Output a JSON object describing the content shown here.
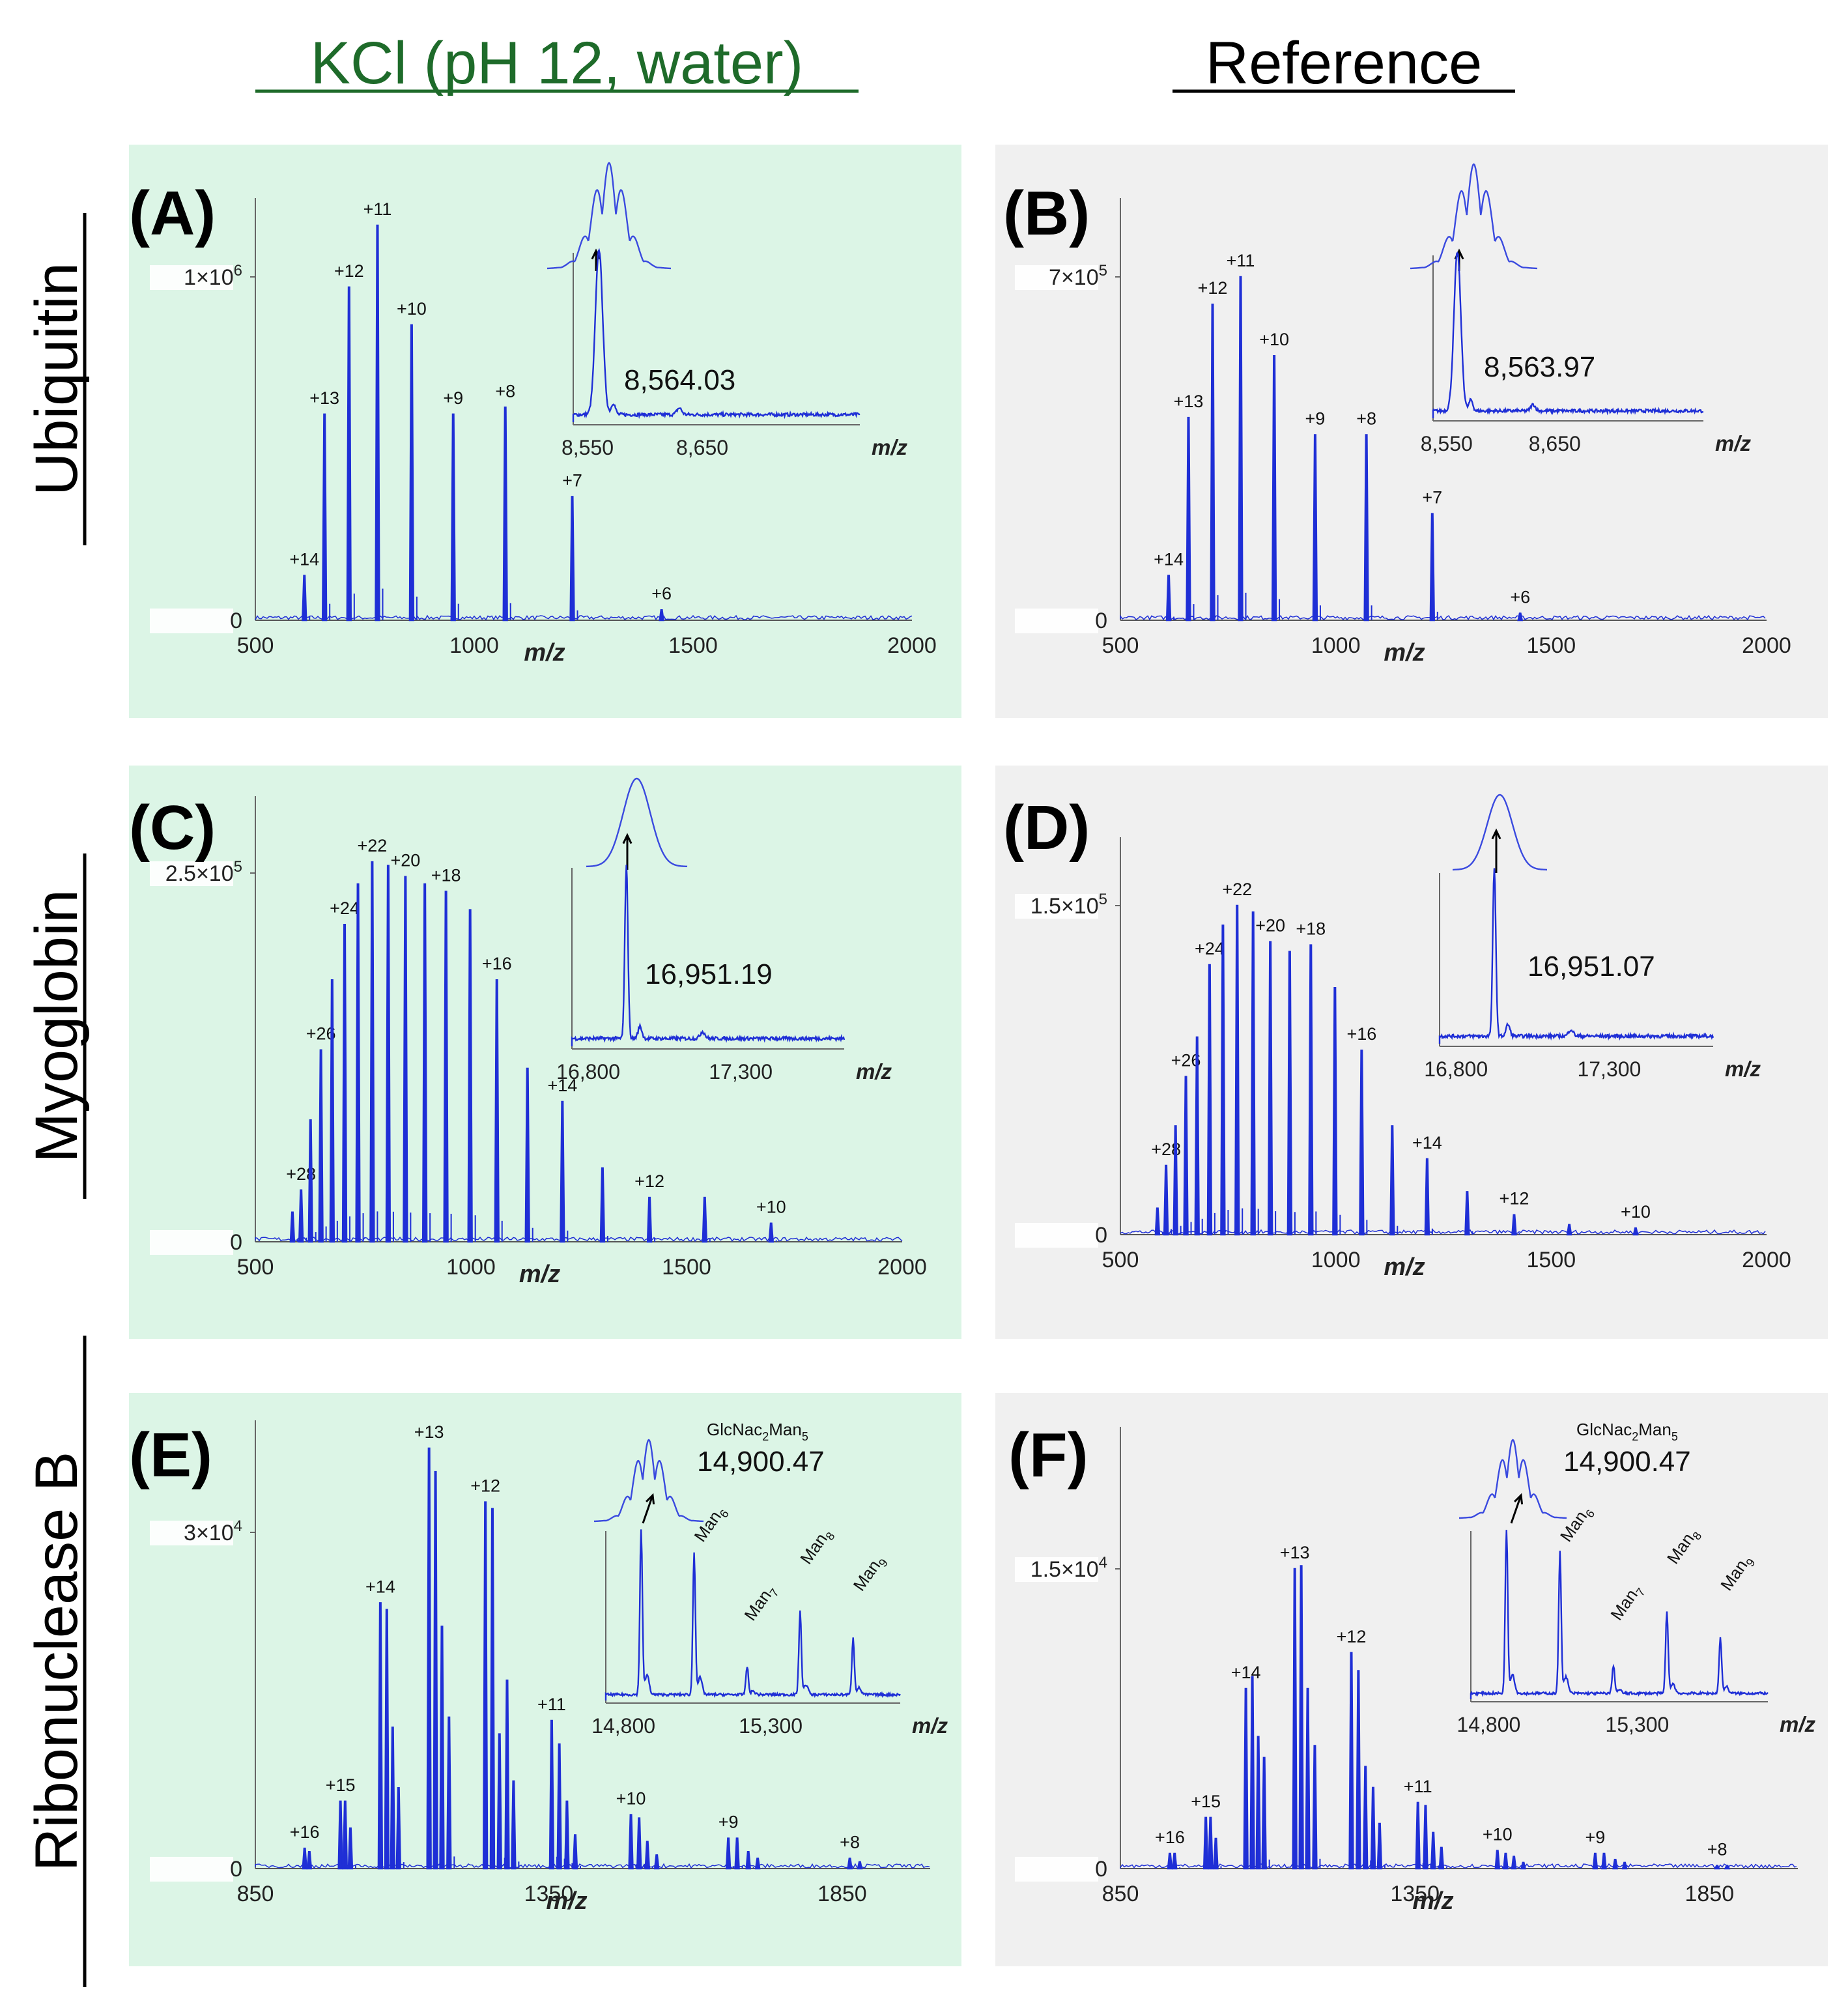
{
  "column_titles": {
    "left": "KCl (pH 12, water)",
    "right": "Reference"
  },
  "row_titles": [
    "Ubiquitin",
    "Myoglobin",
    "Ribonuclease B"
  ],
  "colors": {
    "green_bg": "#dcf5e6",
    "gray_bg": "#f0f0f0",
    "spectrum": "#1f2fd6",
    "left_title": "#1e6b2a",
    "inset_line": "#3a4adf"
  },
  "xlabel": "m/z",
  "chart_data": [
    {
      "id": "A",
      "panel_label": "(A)",
      "type": "line",
      "title": "Ubiquitin KCl (pH 12, water)",
      "xlim": [
        500,
        2000
      ],
      "xticks": [
        "500",
        "1000",
        "1500",
        "2000"
      ],
      "ymax_value": 1000000,
      "ylabels": [
        "1×10",
        "0"
      ],
      "yexp": "6",
      "peaks": [
        {
          "x": 612,
          "y": 0.13,
          "label": "+14"
        },
        {
          "x": 658,
          "y": 0.6,
          "label": "+13"
        },
        {
          "x": 714,
          "y": 0.97,
          "label": "+12"
        },
        {
          "x": 779,
          "y": 1.15,
          "label": "+11"
        },
        {
          "x": 857,
          "y": 0.86,
          "label": "+10"
        },
        {
          "x": 952,
          "y": 0.6,
          "label": "+9"
        },
        {
          "x": 1071,
          "y": 0.62,
          "label": "+8"
        },
        {
          "x": 1224,
          "y": 0.36,
          "label": "+7"
        },
        {
          "x": 1428,
          "y": 0.03,
          "label": "+6"
        }
      ],
      "inset": {
        "mass": "8,564.03",
        "xticks": [
          "8,550",
          "8,650"
        ],
        "xlabel": "m/z",
        "envelope": "isotope"
      }
    },
    {
      "id": "B",
      "panel_label": "(B)",
      "type": "line",
      "title": "Ubiquitin Reference",
      "xlim": [
        500,
        2000
      ],
      "xticks": [
        "500",
        "1000",
        "1500",
        "2000"
      ],
      "ymax_value": 700000,
      "ylabels": [
        "7×10",
        "0"
      ],
      "yexp": "5",
      "peaks": [
        {
          "x": 612,
          "y": 0.13,
          "label": "+14"
        },
        {
          "x": 658,
          "y": 0.59,
          "label": "+13"
        },
        {
          "x": 714,
          "y": 0.92,
          "label": "+12"
        },
        {
          "x": 779,
          "y": 1.0,
          "label": "+11"
        },
        {
          "x": 857,
          "y": 0.77,
          "label": "+10"
        },
        {
          "x": 952,
          "y": 0.54,
          "label": "+9"
        },
        {
          "x": 1071,
          "y": 0.54,
          "label": "+8"
        },
        {
          "x": 1224,
          "y": 0.31,
          "label": "+7"
        },
        {
          "x": 1428,
          "y": 0.02,
          "label": "+6"
        }
      ],
      "inset": {
        "mass": "8,563.97",
        "xticks": [
          "8,550",
          "8,650"
        ],
        "xlabel": "m/z",
        "envelope": "isotope"
      }
    },
    {
      "id": "C",
      "panel_label": "(C)",
      "type": "line",
      "title": "Myoglobin KCl (pH 12, water)",
      "xlim": [
        500,
        2000
      ],
      "xticks": [
        "500",
        "1000",
        "1500",
        "2000"
      ],
      "ymax_value": 250000,
      "ylabels": [
        "2.5×10",
        "0"
      ],
      "yexp": "5",
      "peaks": [
        {
          "x": 586,
          "y": 0.08,
          "label": ""
        },
        {
          "x": 606,
          "y": 0.14,
          "label": "+28"
        },
        {
          "x": 628,
          "y": 0.33,
          "label": ""
        },
        {
          "x": 652,
          "y": 0.52,
          "label": "+26"
        },
        {
          "x": 678,
          "y": 0.71,
          "label": ""
        },
        {
          "x": 707,
          "y": 0.86,
          "label": "+24"
        },
        {
          "x": 738,
          "y": 0.97,
          "label": ""
        },
        {
          "x": 771,
          "y": 1.03,
          "label": "+22"
        },
        {
          "x": 808,
          "y": 1.02,
          "label": ""
        },
        {
          "x": 848,
          "y": 0.99,
          "label": "+20"
        },
        {
          "x": 893,
          "y": 0.97,
          "label": ""
        },
        {
          "x": 942,
          "y": 0.95,
          "label": "+18"
        },
        {
          "x": 998,
          "y": 0.9,
          "label": ""
        },
        {
          "x": 1060,
          "y": 0.71,
          "label": "+16"
        },
        {
          "x": 1131,
          "y": 0.47,
          "label": ""
        },
        {
          "x": 1212,
          "y": 0.38,
          "label": "+14"
        },
        {
          "x": 1305,
          "y": 0.2,
          "label": ""
        },
        {
          "x": 1414,
          "y": 0.12,
          "label": "+12"
        },
        {
          "x": 1542,
          "y": 0.12,
          "label": ""
        },
        {
          "x": 1696,
          "y": 0.05,
          "label": "+10"
        }
      ],
      "inset": {
        "mass": "16,951.19",
        "xticks": [
          "16,800",
          "17,300"
        ],
        "xlabel": "m/z",
        "envelope": "smooth"
      }
    },
    {
      "id": "D",
      "panel_label": "(D)",
      "type": "line",
      "title": "Myoglobin Reference",
      "xlim": [
        500,
        2000
      ],
      "xticks": [
        "500",
        "1000",
        "1500",
        "2000"
      ],
      "ymax_value": 150000,
      "ylabels": [
        "1.5×10",
        "0"
      ],
      "yexp": "5",
      "peaks": [
        {
          "x": 586,
          "y": 0.08,
          "label": ""
        },
        {
          "x": 606,
          "y": 0.21,
          "label": "+28"
        },
        {
          "x": 628,
          "y": 0.33,
          "label": ""
        },
        {
          "x": 652,
          "y": 0.48,
          "label": "+26"
        },
        {
          "x": 678,
          "y": 0.6,
          "label": ""
        },
        {
          "x": 707,
          "y": 0.82,
          "label": "+24"
        },
        {
          "x": 738,
          "y": 0.94,
          "label": ""
        },
        {
          "x": 771,
          "y": 1.0,
          "label": "+22"
        },
        {
          "x": 808,
          "y": 0.98,
          "label": ""
        },
        {
          "x": 848,
          "y": 0.89,
          "label": "+20"
        },
        {
          "x": 893,
          "y": 0.86,
          "label": ""
        },
        {
          "x": 942,
          "y": 0.88,
          "label": "+18"
        },
        {
          "x": 998,
          "y": 0.75,
          "label": ""
        },
        {
          "x": 1060,
          "y": 0.56,
          "label": "+16"
        },
        {
          "x": 1131,
          "y": 0.33,
          "label": ""
        },
        {
          "x": 1212,
          "y": 0.23,
          "label": "+14"
        },
        {
          "x": 1305,
          "y": 0.13,
          "label": ""
        },
        {
          "x": 1414,
          "y": 0.06,
          "label": "+12"
        },
        {
          "x": 1542,
          "y": 0.03,
          "label": ""
        },
        {
          "x": 1696,
          "y": 0.02,
          "label": "+10"
        }
      ],
      "inset": {
        "mass": "16,951.07",
        "xticks": [
          "16,800",
          "17,300"
        ],
        "xlabel": "m/z",
        "envelope": "smooth"
      }
    },
    {
      "id": "E",
      "panel_label": "(E)",
      "type": "line",
      "title": "Ribonuclease B KCl (pH 12, water)",
      "xlim": [
        850,
        2000
      ],
      "xticks": [
        "850",
        "1350",
        "1850"
      ],
      "ymax_value": 30000,
      "ylabels": [
        "3×10",
        "0"
      ],
      "yexp": "4",
      "peaks": [
        {
          "x": 934,
          "y": 0.06,
          "label": "+16"
        },
        {
          "x": 942,
          "y": 0.05,
          "label": ""
        },
        {
          "x": 995,
          "y": 0.2,
          "label": "+15"
        },
        {
          "x": 1003,
          "y": 0.2,
          "label": ""
        },
        {
          "x": 1012,
          "y": 0.12,
          "label": ""
        },
        {
          "x": 1063,
          "y": 0.79,
          "label": "+14"
        },
        {
          "x": 1074,
          "y": 0.77,
          "label": ""
        },
        {
          "x": 1084,
          "y": 0.42,
          "label": ""
        },
        {
          "x": 1094,
          "y": 0.24,
          "label": ""
        },
        {
          "x": 1146,
          "y": 1.25,
          "label": "+13"
        },
        {
          "x": 1157,
          "y": 1.18,
          "label": ""
        },
        {
          "x": 1168,
          "y": 0.72,
          "label": ""
        },
        {
          "x": 1180,
          "y": 0.45,
          "label": ""
        },
        {
          "x": 1242,
          "y": 1.09,
          "label": "+12"
        },
        {
          "x": 1254,
          "y": 1.07,
          "label": ""
        },
        {
          "x": 1266,
          "y": 0.4,
          "label": ""
        },
        {
          "x": 1279,
          "y": 0.56,
          "label": ""
        },
        {
          "x": 1290,
          "y": 0.26,
          "label": ""
        },
        {
          "x": 1355,
          "y": 0.44,
          "label": "+11"
        },
        {
          "x": 1368,
          "y": 0.37,
          "label": ""
        },
        {
          "x": 1381,
          "y": 0.2,
          "label": ""
        },
        {
          "x": 1395,
          "y": 0.1,
          "label": ""
        },
        {
          "x": 1490,
          "y": 0.16,
          "label": "+10"
        },
        {
          "x": 1504,
          "y": 0.15,
          "label": ""
        },
        {
          "x": 1518,
          "y": 0.08,
          "label": ""
        },
        {
          "x": 1534,
          "y": 0.04,
          "label": ""
        },
        {
          "x": 1656,
          "y": 0.09,
          "label": "+9"
        },
        {
          "x": 1671,
          "y": 0.09,
          "label": ""
        },
        {
          "x": 1690,
          "y": 0.05,
          "label": ""
        },
        {
          "x": 1706,
          "y": 0.03,
          "label": ""
        },
        {
          "x": 1863,
          "y": 0.03,
          "label": "+8"
        },
        {
          "x": 1880,
          "y": 0.02,
          "label": ""
        }
      ],
      "inset": {
        "mass": "14,900.47",
        "glycan": "GlcNac2Man5",
        "xticks": [
          "14,800",
          "15,300"
        ],
        "xlabel": "m/z",
        "envelope": "isotope",
        "glycoforms": [
          "Man6",
          "Man7",
          "Man8",
          "Man9"
        ]
      }
    },
    {
      "id": "F",
      "panel_label": "(F)",
      "type": "line",
      "title": "Ribonuclease B Reference",
      "xlim": [
        850,
        2000
      ],
      "xticks": [
        "850",
        "1350",
        "1850"
      ],
      "ymax_value": 15000,
      "ylabels": [
        "1.5×10",
        "0"
      ],
      "yexp": "4",
      "peaks": [
        {
          "x": 934,
          "y": 0.05,
          "label": "+16"
        },
        {
          "x": 942,
          "y": 0.05,
          "label": ""
        },
        {
          "x": 995,
          "y": 0.17,
          "label": "+15"
        },
        {
          "x": 1003,
          "y": 0.17,
          "label": ""
        },
        {
          "x": 1012,
          "y": 0.1,
          "label": ""
        },
        {
          "x": 1063,
          "y": 0.6,
          "label": "+14"
        },
        {
          "x": 1074,
          "y": 0.64,
          "label": ""
        },
        {
          "x": 1084,
          "y": 0.44,
          "label": ""
        },
        {
          "x": 1094,
          "y": 0.37,
          "label": ""
        },
        {
          "x": 1146,
          "y": 1.0,
          "label": "+13"
        },
        {
          "x": 1157,
          "y": 1.01,
          "label": ""
        },
        {
          "x": 1168,
          "y": 0.6,
          "label": ""
        },
        {
          "x": 1180,
          "y": 0.41,
          "label": ""
        },
        {
          "x": 1242,
          "y": 0.72,
          "label": "+12"
        },
        {
          "x": 1254,
          "y": 0.66,
          "label": ""
        },
        {
          "x": 1266,
          "y": 0.34,
          "label": ""
        },
        {
          "x": 1279,
          "y": 0.27,
          "label": ""
        },
        {
          "x": 1290,
          "y": 0.15,
          "label": ""
        },
        {
          "x": 1355,
          "y": 0.22,
          "label": "+11"
        },
        {
          "x": 1368,
          "y": 0.21,
          "label": ""
        },
        {
          "x": 1381,
          "y": 0.12,
          "label": ""
        },
        {
          "x": 1395,
          "y": 0.07,
          "label": ""
        },
        {
          "x": 1490,
          "y": 0.06,
          "label": "+10"
        },
        {
          "x": 1504,
          "y": 0.05,
          "label": ""
        },
        {
          "x": 1518,
          "y": 0.04,
          "label": ""
        },
        {
          "x": 1534,
          "y": 0.02,
          "label": ""
        },
        {
          "x": 1656,
          "y": 0.05,
          "label": "+9"
        },
        {
          "x": 1671,
          "y": 0.05,
          "label": ""
        },
        {
          "x": 1690,
          "y": 0.03,
          "label": ""
        },
        {
          "x": 1706,
          "y": 0.02,
          "label": ""
        },
        {
          "x": 1863,
          "y": 0.01,
          "label": "+8"
        },
        {
          "x": 1880,
          "y": 0.01,
          "label": ""
        }
      ],
      "inset": {
        "mass": "14,900.47",
        "glycan": "GlcNac2Man5",
        "xticks": [
          "14,800",
          "15,300"
        ],
        "xlabel": "m/z",
        "envelope": "isotope",
        "glycoforms": [
          "Man6",
          "Man7",
          "Man8",
          "Man9"
        ]
      }
    }
  ]
}
